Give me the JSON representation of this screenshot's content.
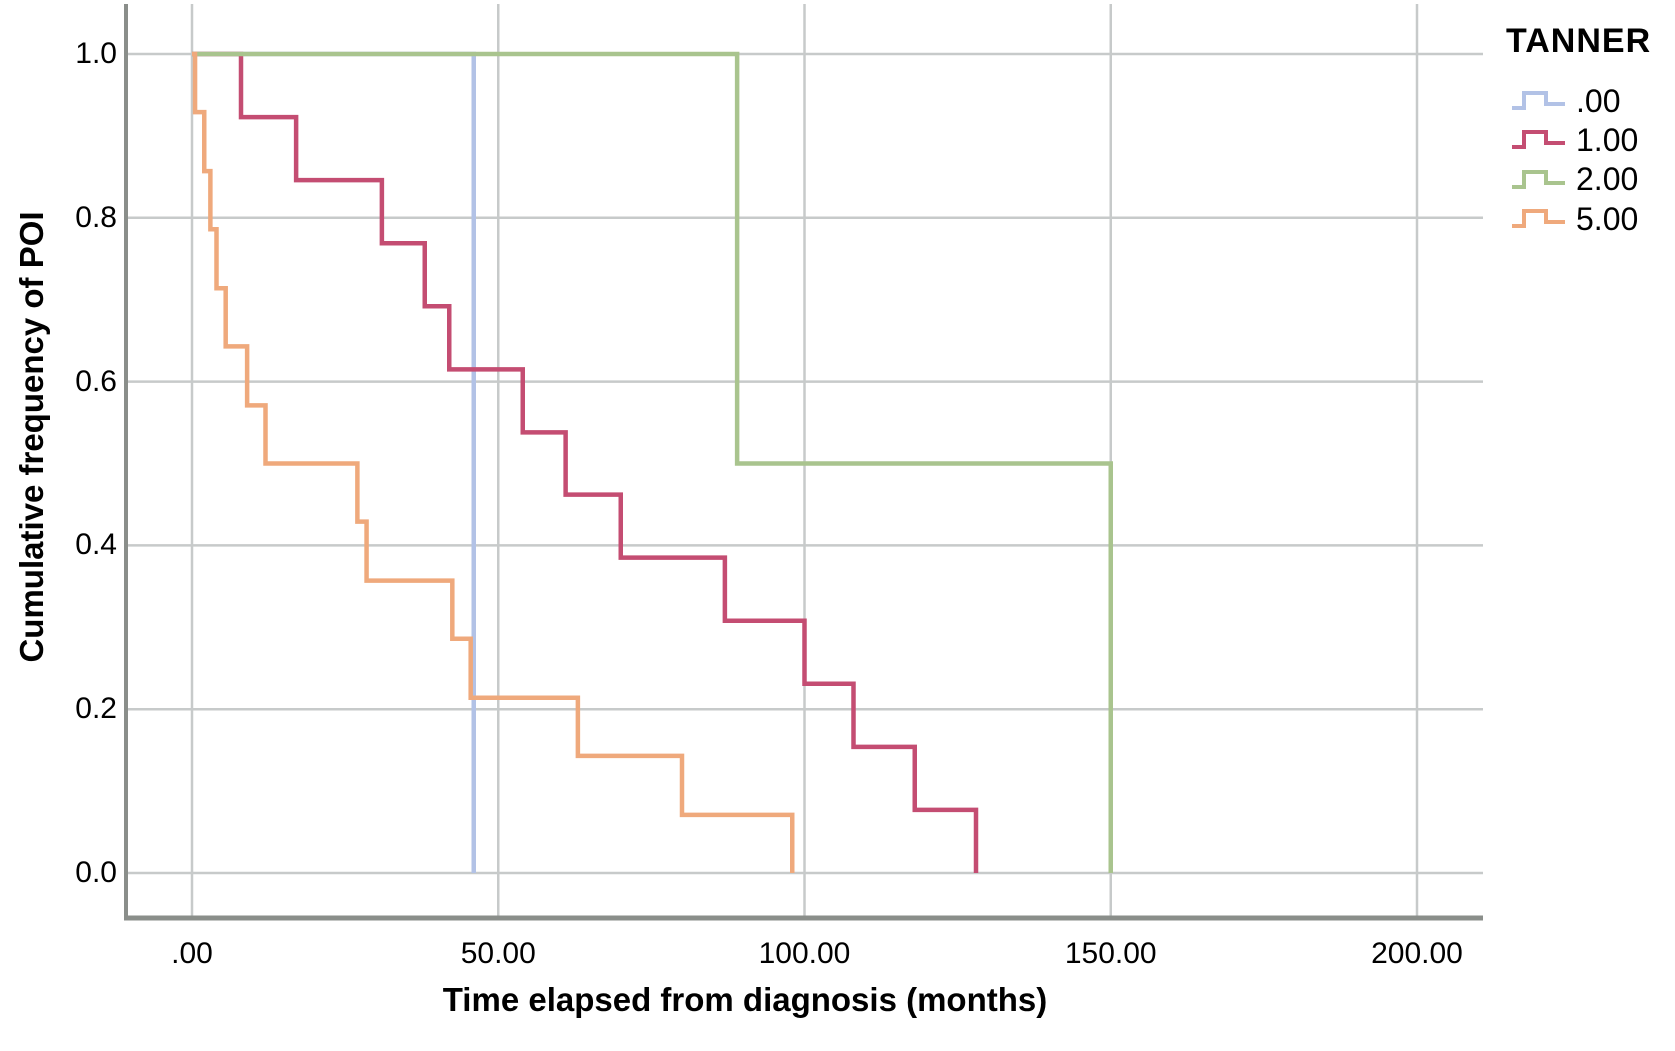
{
  "chart_data": {
    "type": "line",
    "subtype": "step-cumulative-incidence",
    "title": "",
    "legend_title": "TANNER",
    "xlabel": "Time elapsed from diagnosis (months)",
    "ylabel": "Cumulative frequency of POI",
    "xlim": [
      -11,
      211
    ],
    "ylim": [
      -0.06,
      1.06
    ],
    "grid": true,
    "legend_position": "right",
    "x_ticks": [
      {
        "t": 0,
        "label": ".00"
      },
      {
        "t": 50,
        "label": "50.00"
      },
      {
        "t": 100,
        "label": "100.00"
      },
      {
        "t": 150,
        "label": "150.00"
      },
      {
        "t": 200,
        "label": "200.00"
      }
    ],
    "y_ticks": [
      {
        "v": 0.0,
        "label": "0.0"
      },
      {
        "v": 0.2,
        "label": "0.2"
      },
      {
        "v": 0.4,
        "label": "0.4"
      },
      {
        "v": 0.6,
        "label": "0.6"
      },
      {
        "v": 0.8,
        "label": "0.8"
      },
      {
        "v": 1.0,
        "label": "1.0"
      }
    ],
    "colors": {
      "grid": "#c7caca",
      "axis": "#8a8e8a",
      "text": "#000000"
    },
    "series": [
      {
        "name": ".00",
        "color": "#b2c2e6",
        "start": 1.0,
        "steps": [
          [
            46,
            0.0
          ]
        ]
      },
      {
        "name": "1.00",
        "color": "#c44d72",
        "start": 1.0,
        "steps": [
          [
            8,
            0.923
          ],
          [
            17,
            0.846
          ],
          [
            31,
            0.769
          ],
          [
            38,
            0.692
          ],
          [
            42,
            0.615
          ],
          [
            54,
            0.538
          ],
          [
            61,
            0.462
          ],
          [
            70,
            0.385
          ],
          [
            87,
            0.308
          ],
          [
            100,
            0.231
          ],
          [
            108,
            0.154
          ],
          [
            118,
            0.077
          ],
          [
            128,
            0.0
          ]
        ]
      },
      {
        "name": "2.00",
        "color": "#a9c48e",
        "start": 1.0,
        "steps": [
          [
            89,
            0.5
          ],
          [
            150,
            0.0
          ]
        ]
      },
      {
        "name": "5.00",
        "color": "#efa97c",
        "start": 1.0,
        "steps": [
          [
            0.5,
            0.929
          ],
          [
            2,
            0.857
          ],
          [
            3,
            0.786
          ],
          [
            4,
            0.714
          ],
          [
            5.5,
            0.643
          ],
          [
            9,
            0.571
          ],
          [
            12,
            0.5
          ],
          [
            27,
            0.429
          ],
          [
            28.5,
            0.357
          ],
          [
            42.5,
            0.286
          ],
          [
            45.5,
            0.214
          ],
          [
            63,
            0.143
          ],
          [
            80,
            0.071
          ],
          [
            98,
            0.0
          ]
        ]
      }
    ]
  }
}
